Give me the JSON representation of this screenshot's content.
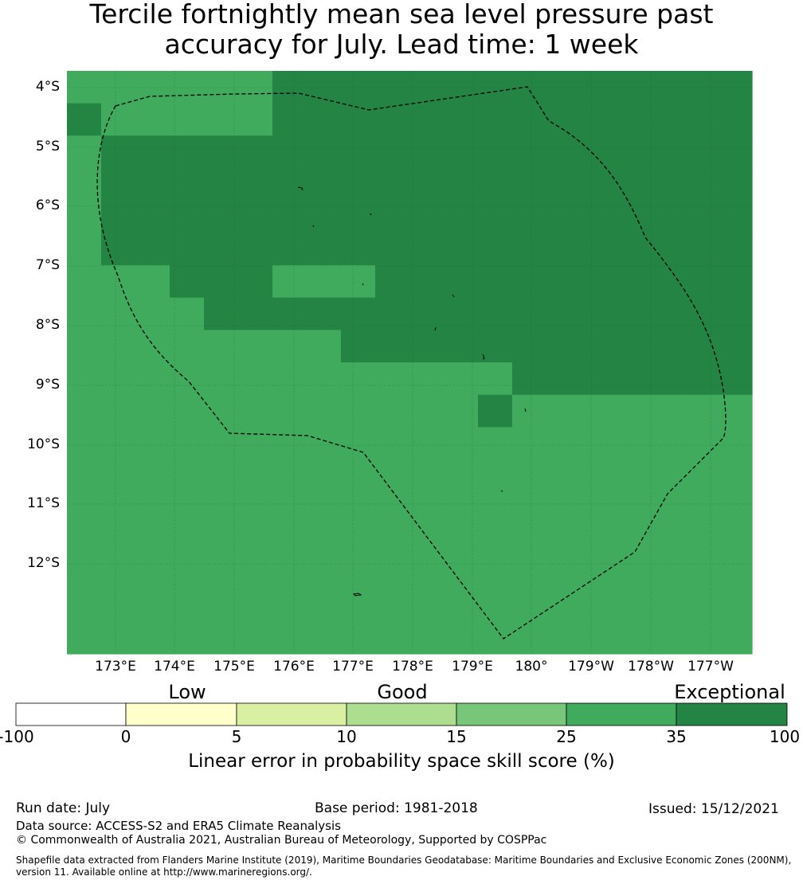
{
  "title_line1": "Tercile fortnightly mean sea level pressure past",
  "title_line2": "accuracy for July. Lead time: 1 week",
  "lat_labels": [
    "4°S",
    "5°S",
    "6°S",
    "7°S",
    "8°S",
    "9°S",
    "10°S",
    "11°S",
    "12°S"
  ],
  "lon_labels": [
    "173°E",
    "174°E",
    "175°E",
    "176°E",
    "177°E",
    "178°E",
    "179°E",
    "180°",
    "179°W",
    "178°W",
    "177°W"
  ],
  "categories": {
    "low": "Low",
    "good": "Good",
    "exceptional": "Exceptional"
  },
  "colorbar": {
    "ticks": [
      "-100",
      "0",
      "5",
      "10",
      "15",
      "25",
      "35",
      "100"
    ],
    "colors": [
      "#ffffff",
      "#ffffcc",
      "#d9f0a3",
      "#addd8e",
      "#78c679",
      "#41ab5d",
      "#238443"
    ],
    "title": "Linear error in probability space skill score (%)"
  },
  "map_data": {
    "grid_rows": [
      "33333344444444444444",
      "43333344444444444444",
      "34444444444444444444",
      "34444444444444444444",
      "34444444444444444444",
      "34444444444444444444",
      "33344433344444444444",
      "33334444444444444444",
      "33333333444444444444",
      "33333333333334444444",
      "33333333333343333333",
      "33333333333333333333",
      "33333333333333333333",
      "33333333333333333333",
      "33333333333333333333",
      "33333333333333333333",
      "33333333333333333333",
      "33333333333333333333"
    ]
  },
  "footer": {
    "run_date": "Run date: July",
    "base_period": "Base period: 1981-2018",
    "issued": "Issued: 15/12/2021",
    "data_source": "Data source: ACCESS-S2 and ERA5 Climate Reanalysis",
    "copyright": "© Commonwealth of Australia 2021, Australian Bureau of Meteorology, Supported by COSPPac",
    "shapefile_1": "Shapefile data extracted from Flanders Marine Institute (2019), Maritime Boundaries Geodatabase: Maritime Boundaries and Exclusive Economic Zones (200NM),",
    "shapefile_2": "version 11. Available online at http://www.marineregions.org/."
  }
}
